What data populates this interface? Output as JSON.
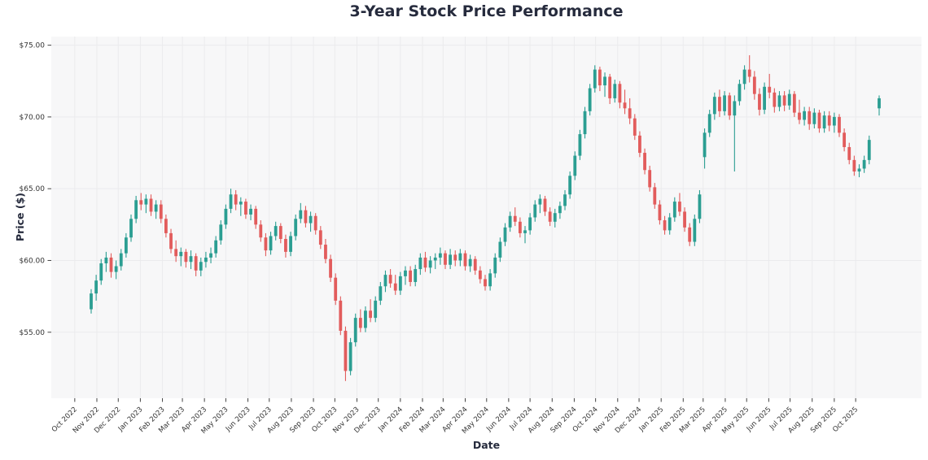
{
  "chart_data": {
    "type": "candlestick",
    "title": "3-Year Stock Price Performance",
    "xlabel": "Date",
    "ylabel": "Price ($)",
    "frequency": "weekly",
    "grid": true,
    "legend": "none",
    "ylim": [
      50.4,
      75.6
    ],
    "colors": {
      "up": "#2b9e92",
      "down": "#e25c5c",
      "plot_background": "#f7f7f8",
      "grid": "#ebebed",
      "tick_mark": "#444444",
      "tick_text": "#333333",
      "title_text": "#262b3d"
    },
    "y_ticks": [
      {
        "label": "$55.00",
        "value": 55
      },
      {
        "label": "$60.00",
        "value": 60
      },
      {
        "label": "$65.00",
        "value": 65
      },
      {
        "label": "$70.00",
        "value": 70
      },
      {
        "label": "$75.00",
        "value": 75
      }
    ],
    "x_ticks": [
      {
        "label": "Oct 2022",
        "index": -3.29
      },
      {
        "label": "Nov 2022",
        "index": 1.14
      },
      {
        "label": "Dec 2022",
        "index": 5.43
      },
      {
        "label": "Jan 2023",
        "index": 9.86
      },
      {
        "label": "Feb 2023",
        "index": 14.29
      },
      {
        "label": "Mar 2023",
        "index": 18.29
      },
      {
        "label": "Apr 2023",
        "index": 22.71
      },
      {
        "label": "May 2023",
        "index": 27.0
      },
      {
        "label": "Jun 2023",
        "index": 31.43
      },
      {
        "label": "Jul 2023",
        "index": 35.71
      },
      {
        "label": "Aug 2023",
        "index": 40.14
      },
      {
        "label": "Sep 2023",
        "index": 44.57
      },
      {
        "label": "Oct 2023",
        "index": 48.86
      },
      {
        "label": "Nov 2023",
        "index": 53.29
      },
      {
        "label": "Dec 2023",
        "index": 57.57
      },
      {
        "label": "Jan 2024",
        "index": 62.0
      },
      {
        "label": "Feb 2024",
        "index": 66.43
      },
      {
        "label": "Mar 2024",
        "index": 70.57
      },
      {
        "label": "Apr 2024",
        "index": 75.0
      },
      {
        "label": "May 2024",
        "index": 79.29
      },
      {
        "label": "Jun 2024",
        "index": 83.71
      },
      {
        "label": "Jul 2024",
        "index": 88.0
      },
      {
        "label": "Aug 2024",
        "index": 92.43
      },
      {
        "label": "Sep 2024",
        "index": 96.86
      },
      {
        "label": "Oct 2024",
        "index": 101.14
      },
      {
        "label": "Nov 2024",
        "index": 105.57
      },
      {
        "label": "Dec 2024",
        "index": 109.86
      },
      {
        "label": "Jan 2025",
        "index": 114.29
      },
      {
        "label": "Feb 2025",
        "index": 118.71
      },
      {
        "label": "Mar 2025",
        "index": 122.71
      },
      {
        "label": "Apr 2025",
        "index": 127.14
      },
      {
        "label": "May 2025",
        "index": 131.43
      },
      {
        "label": "Jun 2025",
        "index": 135.86
      },
      {
        "label": "Jul 2025",
        "index": 140.14
      },
      {
        "label": "Aug 2025",
        "index": 144.57
      },
      {
        "label": "Sep 2025",
        "index": 149.0
      },
      {
        "label": "Oct 2025",
        "index": 153.29
      }
    ],
    "ohlc_format": [
      "open",
      "high",
      "low",
      "close"
    ],
    "ohlc": [
      [
        56.6,
        58.0,
        56.3,
        57.7
      ],
      [
        57.7,
        59.0,
        57.2,
        58.6
      ],
      [
        58.6,
        60.1,
        58.3,
        59.8
      ],
      [
        59.8,
        60.6,
        59.2,
        60.2
      ],
      [
        60.2,
        60.5,
        58.8,
        59.2
      ],
      [
        59.2,
        60.0,
        58.7,
        59.6
      ],
      [
        59.6,
        60.8,
        59.3,
        60.5
      ],
      [
        60.5,
        61.9,
        60.2,
        61.6
      ],
      [
        61.6,
        63.2,
        61.3,
        62.9
      ],
      [
        62.9,
        64.5,
        62.6,
        64.2
      ],
      [
        64.2,
        64.7,
        63.5,
        63.9
      ],
      [
        63.9,
        64.6,
        63.3,
        64.3
      ],
      [
        64.3,
        64.6,
        63.1,
        63.4
      ],
      [
        63.4,
        64.2,
        62.9,
        63.9
      ],
      [
        63.9,
        64.2,
        62.6,
        62.9
      ],
      [
        62.9,
        63.2,
        61.6,
        61.9
      ],
      [
        61.9,
        62.2,
        60.5,
        60.8
      ],
      [
        60.8,
        61.4,
        59.9,
        60.3
      ],
      [
        60.3,
        60.9,
        59.6,
        60.6
      ],
      [
        60.6,
        60.8,
        59.5,
        59.9
      ],
      [
        59.9,
        60.7,
        59.4,
        60.3
      ],
      [
        60.3,
        60.5,
        58.9,
        59.3
      ],
      [
        59.3,
        60.2,
        58.9,
        59.9
      ],
      [
        59.9,
        60.6,
        59.5,
        60.2
      ],
      [
        60.2,
        60.9,
        59.8,
        60.5
      ],
      [
        60.5,
        61.7,
        60.2,
        61.4
      ],
      [
        61.4,
        62.8,
        61.1,
        62.5
      ],
      [
        62.5,
        63.9,
        62.2,
        63.6
      ],
      [
        63.6,
        65.0,
        63.3,
        64.6
      ],
      [
        64.6,
        64.9,
        63.5,
        63.9
      ],
      [
        63.9,
        64.4,
        63.1,
        64.1
      ],
      [
        64.1,
        64.3,
        62.9,
        63.2
      ],
      [
        63.2,
        63.9,
        62.8,
        63.6
      ],
      [
        63.6,
        63.8,
        62.2,
        62.5
      ],
      [
        62.5,
        62.8,
        61.3,
        61.6
      ],
      [
        61.6,
        61.9,
        60.3,
        60.7
      ],
      [
        60.7,
        62.0,
        60.4,
        61.7
      ],
      [
        61.7,
        62.7,
        61.4,
        62.4
      ],
      [
        62.4,
        62.6,
        61.2,
        61.5
      ],
      [
        61.5,
        61.8,
        60.2,
        60.6
      ],
      [
        60.6,
        62.0,
        60.3,
        61.7
      ],
      [
        61.7,
        63.2,
        61.4,
        62.9
      ],
      [
        62.9,
        64.0,
        62.6,
        63.5
      ],
      [
        63.5,
        63.8,
        62.3,
        62.6
      ],
      [
        62.6,
        63.4,
        62.0,
        63.1
      ],
      [
        63.1,
        63.3,
        61.8,
        62.1
      ],
      [
        62.1,
        62.4,
        60.8,
        61.1
      ],
      [
        61.1,
        61.5,
        59.8,
        60.1
      ],
      [
        60.1,
        60.4,
        58.5,
        58.8
      ],
      [
        58.8,
        59.1,
        56.9,
        57.2
      ],
      [
        57.2,
        57.5,
        54.8,
        55.1
      ],
      [
        55.1,
        55.4,
        51.6,
        52.3
      ],
      [
        52.3,
        54.6,
        52.0,
        54.3
      ],
      [
        54.3,
        56.3,
        54.0,
        56.0
      ],
      [
        56.0,
        56.6,
        55.0,
        55.3
      ],
      [
        55.3,
        56.8,
        55.0,
        56.5
      ],
      [
        56.5,
        57.3,
        55.7,
        56.0
      ],
      [
        56.0,
        57.5,
        55.7,
        57.2
      ],
      [
        57.2,
        58.5,
        56.9,
        58.2
      ],
      [
        58.2,
        59.3,
        57.8,
        59.0
      ],
      [
        59.0,
        59.4,
        58.1,
        58.4
      ],
      [
        58.4,
        59.0,
        57.6,
        57.9
      ],
      [
        57.9,
        59.2,
        57.6,
        58.9
      ],
      [
        58.9,
        59.6,
        58.3,
        59.3
      ],
      [
        59.3,
        59.6,
        58.2,
        58.5
      ],
      [
        58.5,
        59.7,
        58.2,
        59.4
      ],
      [
        59.4,
        60.5,
        59.0,
        60.2
      ],
      [
        60.2,
        60.6,
        59.2,
        59.5
      ],
      [
        59.5,
        60.3,
        59.1,
        60.0
      ],
      [
        60.0,
        60.5,
        59.4,
        60.2
      ],
      [
        60.2,
        60.9,
        59.7,
        60.5
      ],
      [
        60.5,
        60.7,
        59.4,
        59.7
      ],
      [
        59.7,
        60.8,
        59.4,
        60.4
      ],
      [
        60.4,
        60.7,
        59.6,
        60.0
      ],
      [
        60.0,
        60.8,
        59.6,
        60.5
      ],
      [
        60.5,
        60.7,
        59.3,
        59.6
      ],
      [
        59.6,
        60.4,
        59.2,
        60.1
      ],
      [
        60.1,
        60.3,
        59.0,
        59.3
      ],
      [
        59.3,
        59.6,
        58.4,
        58.7
      ],
      [
        58.7,
        59.0,
        57.9,
        58.2
      ],
      [
        58.2,
        59.4,
        57.9,
        59.1
      ],
      [
        59.1,
        60.5,
        58.8,
        60.2
      ],
      [
        60.2,
        61.6,
        59.9,
        61.3
      ],
      [
        61.3,
        62.6,
        61.0,
        62.3
      ],
      [
        62.3,
        63.4,
        62.0,
        63.1
      ],
      [
        63.1,
        63.7,
        62.4,
        62.7
      ],
      [
        62.7,
        63.0,
        61.6,
        61.9
      ],
      [
        61.9,
        62.4,
        61.2,
        62.1
      ],
      [
        62.1,
        63.3,
        61.8,
        63.0
      ],
      [
        63.0,
        64.2,
        62.7,
        63.9
      ],
      [
        63.9,
        64.6,
        63.3,
        64.3
      ],
      [
        64.3,
        64.5,
        63.1,
        63.4
      ],
      [
        63.4,
        63.7,
        62.4,
        62.7
      ],
      [
        62.7,
        63.6,
        62.3,
        63.3
      ],
      [
        63.3,
        64.1,
        62.9,
        63.8
      ],
      [
        63.8,
        64.9,
        63.5,
        64.6
      ],
      [
        64.6,
        66.2,
        64.3,
        65.9
      ],
      [
        65.9,
        67.6,
        65.6,
        67.3
      ],
      [
        67.3,
        69.1,
        67.0,
        68.8
      ],
      [
        68.8,
        70.7,
        68.5,
        70.4
      ],
      [
        70.4,
        72.3,
        70.1,
        72.0
      ],
      [
        72.0,
        73.6,
        71.7,
        73.3
      ],
      [
        73.3,
        73.5,
        71.8,
        72.2
      ],
      [
        72.2,
        73.1,
        71.4,
        72.8
      ],
      [
        72.8,
        73.0,
        70.9,
        71.3
      ],
      [
        71.3,
        72.6,
        71.0,
        72.3
      ],
      [
        72.3,
        72.5,
        70.6,
        71.0
      ],
      [
        71.0,
        71.9,
        70.2,
        70.6
      ],
      [
        70.6,
        71.3,
        69.5,
        69.9
      ],
      [
        69.9,
        70.2,
        68.4,
        68.7
      ],
      [
        68.7,
        69.0,
        67.2,
        67.5
      ],
      [
        67.5,
        67.8,
        66.0,
        66.3
      ],
      [
        66.3,
        66.6,
        64.8,
        65.1
      ],
      [
        65.1,
        65.4,
        63.6,
        63.9
      ],
      [
        63.9,
        64.2,
        62.5,
        62.8
      ],
      [
        62.8,
        63.1,
        61.8,
        62.1
      ],
      [
        62.1,
        63.3,
        61.8,
        63.0
      ],
      [
        63.0,
        64.4,
        62.7,
        64.1
      ],
      [
        64.1,
        64.7,
        63.1,
        63.4
      ],
      [
        63.4,
        63.7,
        62.0,
        62.3
      ],
      [
        62.3,
        62.6,
        61.0,
        61.3
      ],
      [
        61.3,
        63.2,
        61.0,
        62.9
      ],
      [
        62.9,
        64.9,
        62.6,
        64.6
      ],
      [
        67.2,
        69.2,
        66.4,
        68.9
      ],
      [
        68.9,
        70.5,
        68.6,
        70.2
      ],
      [
        70.2,
        71.7,
        69.8,
        71.4
      ],
      [
        71.4,
        71.9,
        70.0,
        70.4
      ],
      [
        70.4,
        71.8,
        70.1,
        71.5
      ],
      [
        71.5,
        71.7,
        69.8,
        70.1
      ],
      [
        70.1,
        71.5,
        66.2,
        71.1
      ],
      [
        71.1,
        72.6,
        70.8,
        72.3
      ],
      [
        72.3,
        73.6,
        71.9,
        73.3
      ],
      [
        73.3,
        74.3,
        72.4,
        72.8
      ],
      [
        72.8,
        73.2,
        71.2,
        71.6
      ],
      [
        71.6,
        72.0,
        70.1,
        70.5
      ],
      [
        70.5,
        72.4,
        70.2,
        72.1
      ],
      [
        72.1,
        73.0,
        71.3,
        71.7
      ],
      [
        71.7,
        72.0,
        70.3,
        70.7
      ],
      [
        70.7,
        71.8,
        70.4,
        71.5
      ],
      [
        71.5,
        71.8,
        70.4,
        70.8
      ],
      [
        70.8,
        71.9,
        70.5,
        71.6
      ],
      [
        71.6,
        71.8,
        70.0,
        70.3
      ],
      [
        70.3,
        71.2,
        69.5,
        69.8
      ],
      [
        69.8,
        70.7,
        69.4,
        70.4
      ],
      [
        70.4,
        70.7,
        69.1,
        69.5
      ],
      [
        69.5,
        70.6,
        69.2,
        70.3
      ],
      [
        70.3,
        70.5,
        68.9,
        69.2
      ],
      [
        69.2,
        70.4,
        68.9,
        70.1
      ],
      [
        70.1,
        70.4,
        69.0,
        69.4
      ],
      [
        69.4,
        70.3,
        68.9,
        70.0
      ],
      [
        70.0,
        70.2,
        68.6,
        68.9
      ],
      [
        68.9,
        69.2,
        67.6,
        67.9
      ],
      [
        67.9,
        68.2,
        66.7,
        67.0
      ],
      [
        67.0,
        67.3,
        65.9,
        66.2
      ],
      [
        66.2,
        66.7,
        65.8,
        66.4
      ],
      [
        66.4,
        67.3,
        66.1,
        67.0
      ],
      [
        67.0,
        68.7,
        66.7,
        68.4
      ],
      null,
      [
        70.6,
        71.5,
        70.1,
        71.3
      ]
    ]
  }
}
